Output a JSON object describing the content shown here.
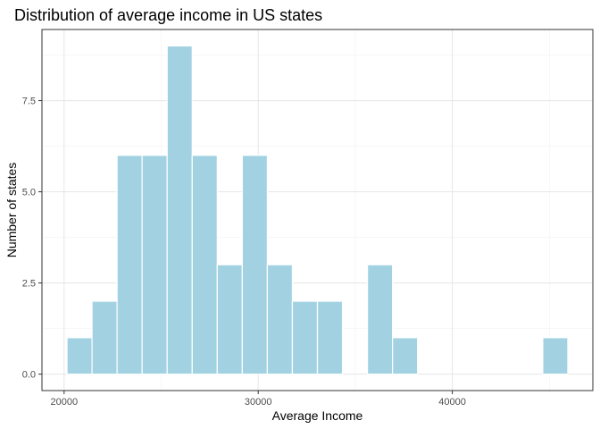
{
  "chart_data": {
    "type": "bar",
    "title": "Distribution of average income in US states",
    "xlabel": "Average Income",
    "ylabel": "Number of states",
    "bin_width": 1290,
    "bins": [
      {
        "x0": 20150,
        "x1": 21440,
        "count": 1
      },
      {
        "x0": 21440,
        "x1": 22730,
        "count": 2
      },
      {
        "x0": 22730,
        "x1": 24020,
        "count": 6
      },
      {
        "x0": 24020,
        "x1": 25310,
        "count": 6
      },
      {
        "x0": 25310,
        "x1": 26600,
        "count": 9
      },
      {
        "x0": 26600,
        "x1": 27890,
        "count": 6
      },
      {
        "x0": 27890,
        "x1": 29180,
        "count": 3
      },
      {
        "x0": 29180,
        "x1": 30470,
        "count": 6
      },
      {
        "x0": 30470,
        "x1": 31760,
        "count": 3
      },
      {
        "x0": 31760,
        "x1": 33050,
        "count": 2
      },
      {
        "x0": 33050,
        "x1": 34340,
        "count": 2
      },
      {
        "x0": 34340,
        "x1": 35630,
        "count": 0
      },
      {
        "x0": 35630,
        "x1": 36920,
        "count": 3
      },
      {
        "x0": 36920,
        "x1": 38210,
        "count": 1
      },
      {
        "x0": 38210,
        "x1": 39500,
        "count": 0
      },
      {
        "x0": 39500,
        "x1": 40790,
        "count": 0
      },
      {
        "x0": 40790,
        "x1": 42080,
        "count": 0
      },
      {
        "x0": 42080,
        "x1": 43370,
        "count": 0
      },
      {
        "x0": 43370,
        "x1": 44660,
        "count": 0
      },
      {
        "x0": 44660,
        "x1": 45950,
        "count": 1
      }
    ],
    "xlim": [
      18860,
      47240
    ],
    "ylim": [
      -0.45,
      9.45
    ],
    "x_ticks": [
      20000,
      30000,
      40000
    ],
    "x_tick_labels": [
      "20000",
      "30000",
      "40000"
    ],
    "x_minor_ticks": [
      25000,
      35000,
      45000
    ],
    "y_ticks": [
      0,
      2.5,
      5,
      7.5
    ],
    "y_tick_labels": [
      "0.0",
      "2.5",
      "5.0",
      "7.5"
    ],
    "y_minor_ticks": [
      1.25,
      3.75,
      6.25,
      8.75
    ],
    "bar_color": "#a2d2e2",
    "bar_outline_color": "#ffffff",
    "grid": true,
    "legend": "none"
  }
}
